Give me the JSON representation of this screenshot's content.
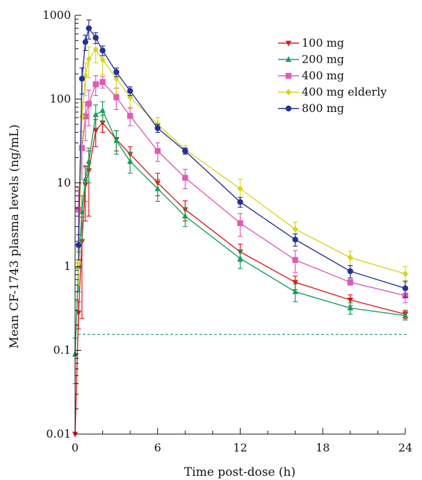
{
  "chart_data": {
    "type": "line",
    "title": "",
    "xlabel": "Time post-dose (h)",
    "ylabel": "Mean CF-1743 plasma levels (ng/mL)",
    "xlim": [
      0,
      24
    ],
    "ylim": [
      0.01,
      1000
    ],
    "yscale": "log",
    "xticks": [
      0,
      6,
      12,
      18,
      24
    ],
    "xtick_labels": [
      "0",
      "6",
      "12",
      "18",
      "24"
    ],
    "yticks": [
      0.01,
      0.1,
      1,
      10,
      100,
      1000
    ],
    "ytick_labels": [
      "0.01",
      "0.1",
      "1",
      "10",
      "100",
      "1000"
    ],
    "grid": false,
    "legend_position": "top-right",
    "reference_line": {
      "y": 0.155,
      "style": "dashed",
      "color": "#1a9a5a"
    },
    "series": [
      {
        "name": "100 mg",
        "color": "#e01818",
        "marker": "triangle-down",
        "x": [
          0,
          0.25,
          0.5,
          0.75,
          1,
          1.5,
          2,
          3,
          4,
          6,
          8,
          12,
          16,
          20,
          24
        ],
        "y": [
          0.01,
          0.28,
          2.0,
          9.5,
          14,
          42,
          52,
          33,
          22,
          10,
          4.8,
          1.5,
          0.65,
          0.4,
          0.27
        ],
        "err": [
          0,
          0.1,
          1.9,
          6,
          10,
          15,
          12,
          9,
          5,
          3,
          1.3,
          0.35,
          0.12,
          0.06,
          0.03
        ]
      },
      {
        "name": "200 mg",
        "color": "#12a05a",
        "marker": "triangle-up",
        "x": [
          0,
          0.25,
          0.5,
          0.75,
          1,
          1.5,
          2,
          3,
          4,
          6,
          8,
          12,
          16,
          20,
          24
        ],
        "y": [
          0.09,
          1.0,
          4.5,
          11,
          18,
          65,
          73,
          32,
          18,
          8.5,
          4.0,
          1.25,
          0.5,
          0.32,
          0.26
        ],
        "err": [
          0.05,
          0.5,
          2.5,
          5,
          8,
          20,
          20,
          10,
          5,
          2.5,
          1.0,
          0.3,
          0.12,
          0.05,
          0.03
        ]
      },
      {
        "name": "400 mg",
        "color": "#e05ab4",
        "marker": "square",
        "x": [
          0.25,
          0.5,
          0.75,
          1,
          1.5,
          2,
          3,
          4,
          6,
          8,
          12,
          16,
          20,
          24
        ],
        "y": [
          4.8,
          26,
          62,
          88,
          150,
          160,
          105,
          63,
          24,
          11.5,
          3.3,
          1.2,
          0.65,
          0.45
        ],
        "err": [
          4,
          15,
          30,
          40,
          40,
          25,
          30,
          15,
          6,
          3,
          1.0,
          0.35,
          0.05,
          0.08
        ]
      },
      {
        "name": "400 mg elderly",
        "color": "#d6d626",
        "marker": "diamond",
        "x": [
          0.25,
          0.5,
          0.75,
          1,
          1.5,
          2,
          3,
          4,
          6,
          8,
          12,
          16,
          20,
          24
        ],
        "y": [
          1.1,
          62,
          190,
          300,
          390,
          295,
          175,
          105,
          50,
          25,
          8.5,
          2.8,
          1.28,
          0.82
        ],
        "err": [
          0.5,
          30,
          80,
          120,
          120,
          100,
          60,
          25,
          10,
          3,
          2.5,
          0.6,
          0.25,
          0.18
        ]
      },
      {
        "name": "800 mg",
        "color": "#26309a",
        "marker": "circle",
        "x": [
          0.25,
          0.5,
          0.75,
          1,
          1.5,
          2,
          3,
          4,
          6,
          8,
          12,
          16,
          20,
          24
        ],
        "y": [
          1.8,
          175,
          480,
          700,
          540,
          380,
          210,
          125,
          45,
          24,
          5.9,
          2.1,
          0.88,
          0.55
        ],
        "err": [
          0.6,
          60,
          100,
          180,
          80,
          50,
          25,
          15,
          5,
          2,
          0.8,
          0.35,
          0.15,
          0.12
        ]
      }
    ]
  }
}
